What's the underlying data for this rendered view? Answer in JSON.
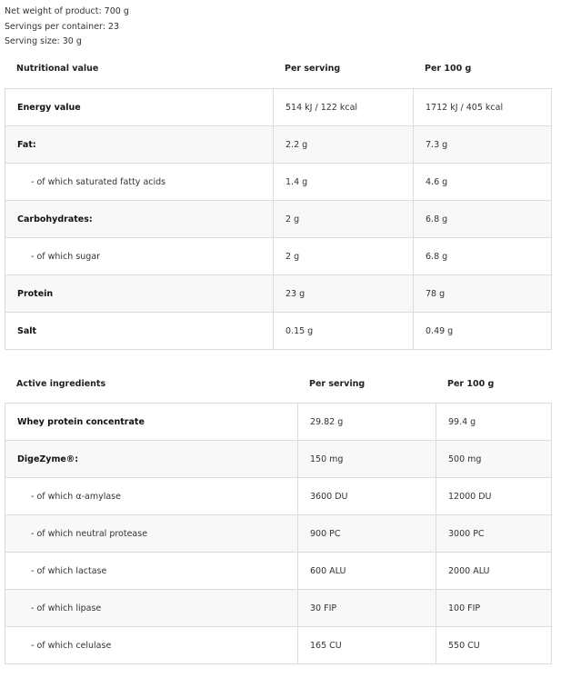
{
  "meta": {
    "net_weight": "Net weight of product: 700 g",
    "servings": "Servings per container: 23",
    "serving_size": "Serving size: 30 g"
  },
  "nutrition": {
    "headers": [
      "Nutritional value",
      "Per serving",
      "Per 100 g"
    ],
    "rows": [
      {
        "name": "Energy value",
        "per_serving": "514 kJ / 122 kcal",
        "per_100g": "1712 kJ / 405 kcal",
        "bold": true
      },
      {
        "name": "Fat:",
        "per_serving": "2.2 g",
        "per_100g": "7.3 g",
        "bold": true
      },
      {
        "name": "- of which saturated fatty acids",
        "per_serving": "1.4 g",
        "per_100g": "4.6 g",
        "bold": false
      },
      {
        "name": "Carbohydrates:",
        "per_serving": "2 g",
        "per_100g": "6.8 g",
        "bold": true
      },
      {
        "name": "- of which sugar",
        "per_serving": "2 g",
        "per_100g": "6.8 g",
        "bold": false
      },
      {
        "name": "Protein",
        "per_serving": "23 g",
        "per_100g": "78 g",
        "bold": true
      },
      {
        "name": "Salt",
        "per_serving": "0.15 g",
        "per_100g": "0.49 g",
        "bold": true
      }
    ]
  },
  "active": {
    "headers": [
      "Active ingredients",
      "Per serving",
      "Per 100 g"
    ],
    "rows": [
      {
        "name": "Whey protein concentrate",
        "per_serving": "29.82 g",
        "per_100g": "99.4 g",
        "bold": true
      },
      {
        "name": "DigeZyme®:",
        "per_serving": "150 mg",
        "per_100g": "500 mg",
        "bold": true
      },
      {
        "name": "- of which α-amylase",
        "per_serving": "3600 DU",
        "per_100g": "12000 DU",
        "bold": false
      },
      {
        "name": "- of which neutral protease",
        "per_serving": "900 PC",
        "per_100g": "3000 PC",
        "bold": false
      },
      {
        "name": "- of which lactase",
        "per_serving": "600 ALU",
        "per_100g": "2000 ALU",
        "bold": false
      },
      {
        "name": "- of which lipase",
        "per_serving": "30 FIP",
        "per_100g": "100 FIP",
        "bold": false
      },
      {
        "name": "- of which celulase",
        "per_serving": "165 CU",
        "per_100g": "550 CU",
        "bold": false
      }
    ]
  }
}
